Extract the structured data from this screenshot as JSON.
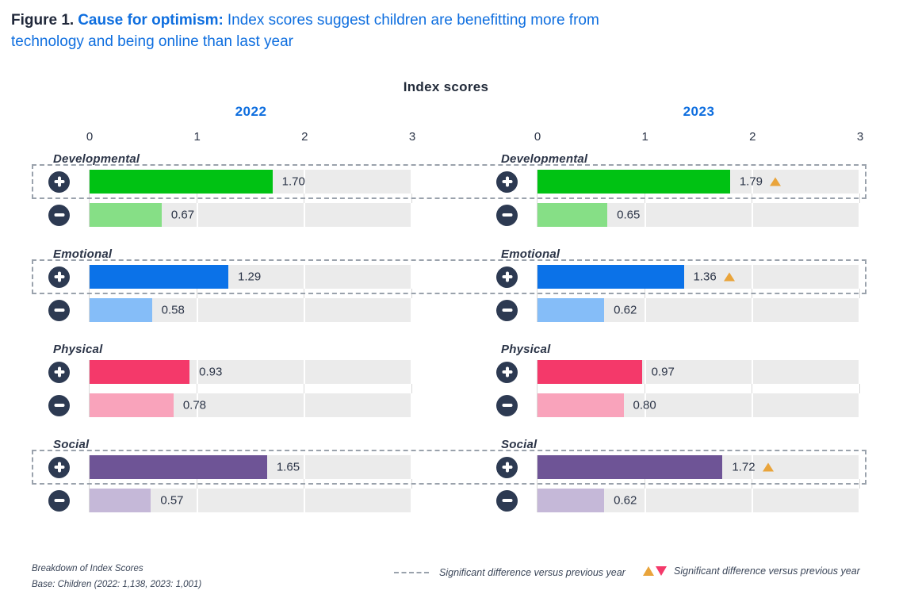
{
  "figure": {
    "label": "Figure 1.",
    "highlight": "Cause for optimism:",
    "title_rest": "Index scores suggest children are benefitting more from technology and being online than last year"
  },
  "chart_data": {
    "type": "bar",
    "title": "Index scores",
    "orientation": "horizontal",
    "years": [
      "2022",
      "2023"
    ],
    "axis_ticks": [
      "0",
      "1",
      "2",
      "3"
    ],
    "axis_max": 3,
    "grid": true,
    "categories": [
      {
        "name": "Developmental",
        "significant": true,
        "colors": {
          "plus": "#00c213",
          "minus": "#86df86"
        },
        "values": [
          {
            "plus": "1.70",
            "minus": "0.67"
          },
          {
            "plus": "1.79",
            "minus": "0.65",
            "plus_marker": "up"
          }
        ]
      },
      {
        "name": "Emotional",
        "significant": true,
        "colors": {
          "plus": "#0b72e8",
          "minus": "#85bdf8"
        },
        "values": [
          {
            "plus": "1.29",
            "minus": "0.58"
          },
          {
            "plus": "1.36",
            "minus": "0.62",
            "plus_marker": "up"
          }
        ]
      },
      {
        "name": "Physical",
        "significant": false,
        "colors": {
          "plus": "#f4396a",
          "minus": "#f9a3bb"
        },
        "values": [
          {
            "plus": "0.93",
            "minus": "0.78"
          },
          {
            "plus": "0.97",
            "minus": "0.80"
          }
        ]
      },
      {
        "name": "Social",
        "significant": true,
        "colors": {
          "plus": "#6e5496",
          "minus": "#c5b8d8"
        },
        "values": [
          {
            "plus": "1.65",
            "minus": "0.57"
          },
          {
            "plus": "1.72",
            "minus": "0.62",
            "plus_marker": "up"
          }
        ]
      }
    ]
  },
  "legend": {
    "dashed_label": "Significant difference versus previous year",
    "triangle_label": "Significant difference versus previous year"
  },
  "footnote": {
    "line1": "Breakdown of Index Scores",
    "line2": "Base: Children (2022: 1,138, 2023: 1,001)"
  },
  "colors": {
    "accent_blue": "#0e6edf",
    "navy_text": "#2b3447",
    "icon_circle": "#2d3a52",
    "bar_track": "#ebebeb",
    "gridline": "#d9d9d9",
    "dashed_border": "#9aa2ac",
    "triangle_up": "#e9a43b",
    "triangle_down": "#f4396a"
  }
}
